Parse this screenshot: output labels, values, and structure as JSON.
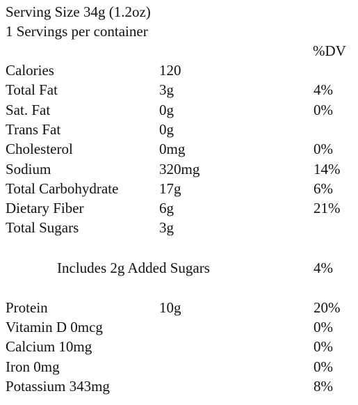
{
  "serving_size": "Serving Size 34g (1.2oz)",
  "servings": "1 Servings per container",
  "dv_header": "%DV",
  "nutrients": [
    {
      "name": "Calories",
      "amount": "120"
    },
    {
      "name": "Total Fat",
      "amount": "3g",
      "dv": "4%"
    },
    {
      "name": "Sat. Fat",
      "amount": "0g",
      "dv": "0%"
    },
    {
      "name": "Trans Fat",
      "amount": "0g"
    },
    {
      "name": "Cholesterol",
      "amount": "0mg",
      "dv": "0%"
    },
    {
      "name": "Sodium",
      "amount": "320mg",
      "dv": "14%"
    },
    {
      "name": "Total Carbohydrate",
      "amount": "17g",
      "dv": "6%"
    },
    {
      "name": "Dietary Fiber",
      "amount": "6g",
      "dv": "21%"
    },
    {
      "name": "Total Sugars",
      "amount": "3g"
    }
  ],
  "added_sugars": {
    "label": "Includes 2g Added Sugars",
    "dv": "4%"
  },
  "protein": {
    "name": "Protein",
    "amount": "10g",
    "dv": "20%"
  },
  "micros": [
    {
      "label": "Vitamin D 0mcg",
      "dv": "0%"
    },
    {
      "label": "Calcium 10mg",
      "dv": "0%"
    },
    {
      "label": "Iron 0mg",
      "dv": "0%"
    },
    {
      "label": "Potassium 343mg",
      "dv": "8%"
    }
  ]
}
